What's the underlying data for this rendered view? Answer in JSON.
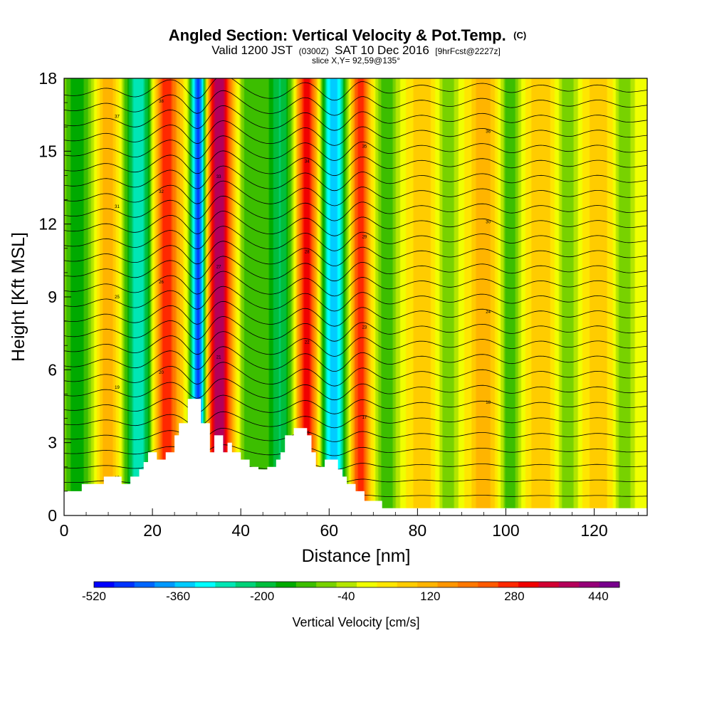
{
  "header": {
    "title_main": "Angled Section: Vertical Velocity & Pot.Temp.",
    "title_unit": "(C)",
    "valid_a": "Valid 1200 JST",
    "valid_b": "(0300Z)",
    "valid_c": "SAT 10 Dec 2016",
    "valid_d": "[9hrFcst@2227z]",
    "slice": "slice X,Y= 92,59@135°"
  },
  "chart_data": {
    "type": "heatmap",
    "title": "Angled Section: Vertical Velocity & Pot.Temp. (C)",
    "xlabel": "Distance [nm]",
    "ylabel": "Height [Kft MSL]",
    "xlim": [
      0,
      132
    ],
    "ylim": [
      0,
      18
    ],
    "x_ticks": [
      "0",
      "20",
      "40",
      "60",
      "80",
      "100",
      "120"
    ],
    "x_tick_values": [
      0,
      20,
      40,
      60,
      80,
      100,
      120
    ],
    "y_ticks": [
      "0",
      "3",
      "6",
      "9",
      "12",
      "15",
      "18"
    ],
    "y_tick_values": [
      0,
      3,
      6,
      9,
      12,
      15,
      18
    ],
    "colorbar": {
      "label": "Vertical Velocity [cm/s]",
      "min": -520,
      "max": 480,
      "step": 40,
      "tick_labels": [
        "-520",
        "-360",
        "-200",
        "-40",
        "120",
        "280",
        "440"
      ],
      "tick_values": [
        -520,
        -360,
        -200,
        -40,
        120,
        280,
        440
      ],
      "colors": [
        "#0000ff",
        "#0033ff",
        "#0066ff",
        "#0099ff",
        "#00ccff",
        "#00ffff",
        "#00e6b4",
        "#00d278",
        "#00be3c",
        "#00aa00",
        "#3cbe00",
        "#78d200",
        "#b4e600",
        "#f0ff00",
        "#ffe600",
        "#ffcc00",
        "#ffb400",
        "#ff9600",
        "#ff7800",
        "#ff5a00",
        "#ff2800",
        "#f00000",
        "#d20032",
        "#b4005a",
        "#960078",
        "#78008c"
      ]
    },
    "vertical_velocity_bands": [
      {
        "x": 3,
        "value": -160,
        "width": 4
      },
      {
        "x": 10,
        "value": 160,
        "width": 3
      },
      {
        "x": 17,
        "value": -280,
        "width": 4
      },
      {
        "x": 23,
        "value": 320,
        "width": 3.5
      },
      {
        "x": 30.5,
        "value": -520,
        "width": 2.2
      },
      {
        "x": 35,
        "value": 440,
        "width": 4
      },
      {
        "x": 42,
        "value": -120,
        "width": 4
      },
      {
        "x": 49,
        "value": -200,
        "width": 4
      },
      {
        "x": 55,
        "value": 360,
        "width": 3
      },
      {
        "x": 61,
        "value": -360,
        "width": 3.5
      },
      {
        "x": 67,
        "value": 320,
        "width": 2.5
      },
      {
        "x": 73,
        "value": -120,
        "width": 3
      },
      {
        "x": 81,
        "value": 120,
        "width": 3
      },
      {
        "x": 87,
        "value": -80,
        "width": 2.5
      },
      {
        "x": 95,
        "value": 160,
        "width": 3
      },
      {
        "x": 101,
        "value": -120,
        "width": 2.5
      },
      {
        "x": 108,
        "value": 120,
        "width": 3
      },
      {
        "x": 114,
        "value": -80,
        "width": 2.5
      },
      {
        "x": 121,
        "value": 120,
        "width": 3
      },
      {
        "x": 127,
        "value": -80,
        "width": 2.5
      }
    ],
    "terrain": [
      [
        0,
        1.0
      ],
      [
        4,
        1.0
      ],
      [
        4,
        1.3
      ],
      [
        9,
        1.3
      ],
      [
        9,
        1.6
      ],
      [
        13,
        1.6
      ],
      [
        13,
        1.3
      ],
      [
        15,
        1.3
      ],
      [
        15,
        1.6
      ],
      [
        17,
        1.6
      ],
      [
        17,
        1.9
      ],
      [
        18,
        1.9
      ],
      [
        18,
        2.2
      ],
      [
        19,
        2.2
      ],
      [
        19,
        2.6
      ],
      [
        21,
        2.6
      ],
      [
        21,
        2.3
      ],
      [
        23,
        2.3
      ],
      [
        23,
        2.6
      ],
      [
        25,
        2.6
      ],
      [
        25,
        3.3
      ],
      [
        26,
        3.3
      ],
      [
        26,
        3.8
      ],
      [
        28,
        3.8
      ],
      [
        28,
        4.8
      ],
      [
        31,
        4.8
      ],
      [
        31,
        3.8
      ],
      [
        33,
        3.8
      ],
      [
        33,
        2.6
      ],
      [
        34,
        2.6
      ],
      [
        34,
        3.3
      ],
      [
        36,
        3.3
      ],
      [
        36,
        2.6
      ],
      [
        37,
        2.6
      ],
      [
        37,
        3.0
      ],
      [
        38,
        3.0
      ],
      [
        38,
        2.6
      ],
      [
        40,
        2.6
      ],
      [
        40,
        2.3
      ],
      [
        42,
        2.3
      ],
      [
        42,
        2.0
      ],
      [
        44,
        2.0
      ],
      [
        44,
        1.9
      ],
      [
        46,
        1.9
      ],
      [
        46,
        2.0
      ],
      [
        48,
        2.0
      ],
      [
        48,
        2.3
      ],
      [
        49,
        2.3
      ],
      [
        49,
        2.6
      ],
      [
        50,
        2.6
      ],
      [
        50,
        3.3
      ],
      [
        52,
        3.3
      ],
      [
        52,
        3.6
      ],
      [
        55,
        3.6
      ],
      [
        55,
        3.3
      ],
      [
        56,
        3.3
      ],
      [
        56,
        2.6
      ],
      [
        57,
        2.6
      ],
      [
        57,
        2.0
      ],
      [
        59,
        2.0
      ],
      [
        59,
        2.3
      ],
      [
        62,
        2.3
      ],
      [
        62,
        1.9
      ],
      [
        63,
        1.9
      ],
      [
        63,
        1.6
      ],
      [
        64,
        1.6
      ],
      [
        64,
        1.3
      ],
      [
        66,
        1.3
      ],
      [
        66,
        1.0
      ],
      [
        68,
        1.0
      ],
      [
        68,
        0.6
      ],
      [
        72,
        0.6
      ],
      [
        72,
        0.3
      ],
      [
        80,
        0.3
      ],
      [
        80,
        0.3
      ],
      [
        132,
        0.3
      ]
    ],
    "contour_labels": [
      "13",
      "14",
      "15",
      "16",
      "17",
      "18",
      "19",
      "20",
      "21",
      "22",
      "23",
      "24",
      "25",
      "26",
      "27",
      "28",
      "29",
      "30",
      "31",
      "32",
      "33",
      "34",
      "35",
      "36",
      "37",
      "38"
    ]
  }
}
